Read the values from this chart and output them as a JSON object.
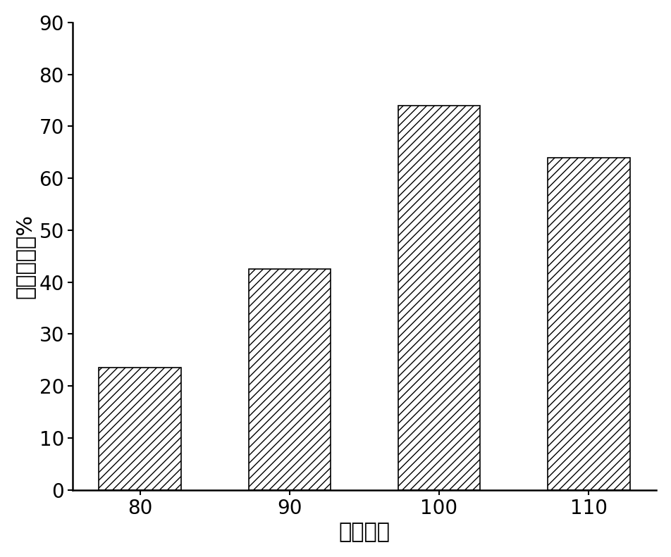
{
  "categories": [
    80,
    90,
    100,
    110
  ],
  "values": [
    23.5,
    42.5,
    74.0,
    64.0
  ],
  "xlabel": "再生温度",
  "ylabel": "再生效率，%",
  "ylim": [
    0,
    90
  ],
  "yticks": [
    0,
    10,
    20,
    30,
    40,
    50,
    60,
    70,
    80,
    90
  ],
  "bar_color": "#ffffff",
  "bar_edgecolor": "#000000",
  "hatch": "///",
  "bar_width": 0.55,
  "xlabel_fontsize": 22,
  "ylabel_fontsize": 22,
  "tick_fontsize": 20,
  "background_color": "#ffffff"
}
